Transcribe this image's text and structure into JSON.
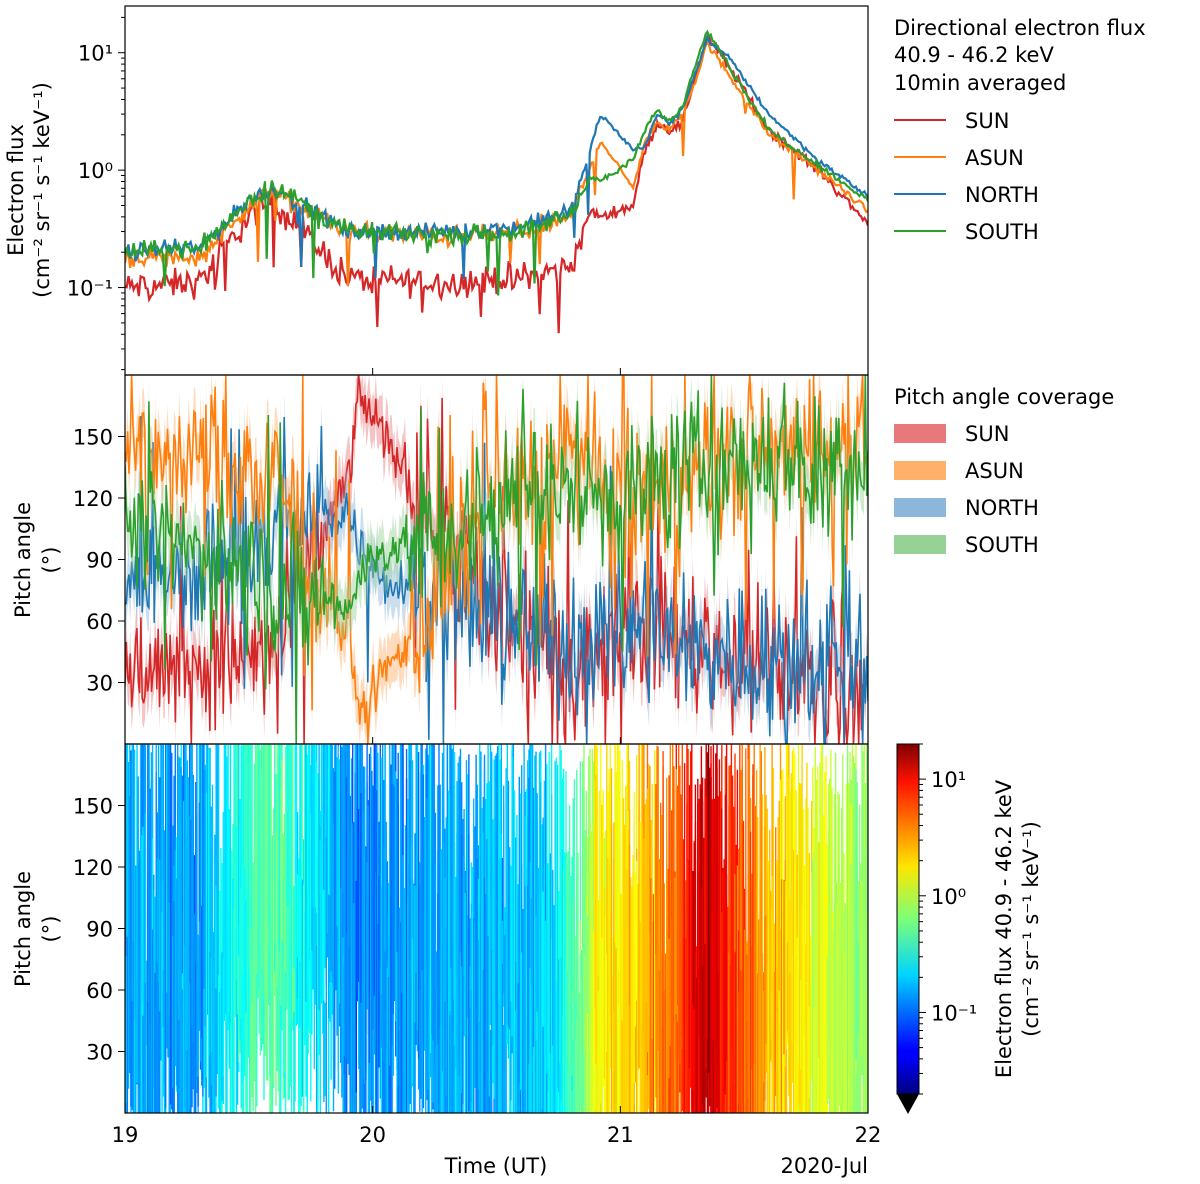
{
  "chart_data": [
    {
      "type": "line",
      "panel": "top",
      "ylabel_line1": "Electron flux",
      "ylabel_line2": "(cm⁻² sr⁻¹ s⁻¹ keV⁻¹)",
      "yscale": "log",
      "ylim": [
        0.018,
        25
      ],
      "xlim": [
        19,
        22
      ],
      "legend_title_lines": [
        "Directional electron flux",
        "40.9 - 46.2 keV",
        "10min averaged"
      ],
      "legend_position": "outside-right",
      "yticks": [
        {
          "value": 0.1,
          "label": "10⁻¹"
        },
        {
          "value": 1,
          "label": "10⁰"
        },
        {
          "value": 10,
          "label": "10¹"
        }
      ],
      "anchor_days": [
        19.0,
        19.3,
        19.5,
        19.6,
        19.9,
        20.3,
        20.6,
        20.8,
        20.88,
        20.92,
        21.05,
        21.1,
        21.15,
        21.2,
        21.25,
        21.3,
        21.35,
        21.45,
        21.6,
        21.8,
        22.0
      ],
      "series": [
        {
          "name": "SUN",
          "color": "#d62728",
          "noise": 0.9,
          "values": [
            0.1,
            0.11,
            0.4,
            0.55,
            0.12,
            0.11,
            0.12,
            0.15,
            0.45,
            0.4,
            0.5,
            1.5,
            2.5,
            2.2,
            2.5,
            6,
            14,
            7,
            2.2,
            1.0,
            0.35
          ]
        },
        {
          "name": "ASUN",
          "color": "#ff7f0e",
          "noise": 0.6,
          "values": [
            0.18,
            0.18,
            0.5,
            0.65,
            0.3,
            0.27,
            0.3,
            0.4,
            1.1,
            1.8,
            0.7,
            1.8,
            2.5,
            2.2,
            3.0,
            5.5,
            12,
            6,
            2.0,
            1.0,
            0.45
          ]
        },
        {
          "name": "NORTH",
          "color": "#1f77b4",
          "noise": 0.5,
          "values": [
            0.2,
            0.22,
            0.55,
            0.7,
            0.3,
            0.3,
            0.33,
            0.45,
            1.5,
            3.0,
            1.5,
            1.6,
            3.0,
            2.5,
            3.2,
            6.5,
            13,
            8.5,
            3.0,
            1.2,
            0.6
          ]
        },
        {
          "name": "SOUTH",
          "color": "#2ca02c",
          "noise": 0.55,
          "values": [
            0.2,
            0.22,
            0.55,
            0.75,
            0.3,
            0.28,
            0.3,
            0.42,
            0.9,
            0.8,
            1.2,
            2.2,
            3.2,
            2.6,
            3.5,
            7.5,
            16,
            7,
            2.2,
            1.1,
            0.55
          ]
        }
      ]
    },
    {
      "type": "line",
      "panel": "middle",
      "ylabel_line1": "Pitch angle",
      "ylabel_line2": "(°)",
      "ylim": [
        0,
        180
      ],
      "xlim": [
        19,
        22
      ],
      "yticks": [
        30,
        60,
        90,
        120,
        150
      ],
      "legend_title": "Pitch angle coverage",
      "legend_position": "outside-right",
      "anchor_days": [
        19.0,
        19.3,
        19.6,
        19.9,
        19.95,
        20.05,
        20.2,
        20.5,
        20.8,
        21.0,
        21.3,
        21.6,
        21.9,
        22.0
      ],
      "series": [
        {
          "name": "SUN",
          "color": "#d62728",
          "fill": "#e8797a",
          "values": [
            35,
            40,
            45,
            130,
            170,
            150,
            120,
            60,
            40,
            60,
            50,
            35,
            30,
            30
          ]
        },
        {
          "name": "ASUN",
          "color": "#ff7f0e",
          "fill": "#ffb06a",
          "values": [
            145,
            140,
            130,
            50,
            15,
            35,
            60,
            120,
            140,
            120,
            130,
            145,
            150,
            150
          ]
        },
        {
          "name": "NORTH",
          "color": "#1f77b4",
          "fill": "#8cb6da",
          "values": [
            75,
            85,
            100,
            115,
            95,
            80,
            80,
            60,
            50,
            60,
            45,
            40,
            40,
            40
          ]
        },
        {
          "name": "SOUTH",
          "color": "#2ca02c",
          "fill": "#96d196",
          "values": [
            105,
            95,
            80,
            65,
            85,
            95,
            100,
            115,
            125,
            120,
            135,
            140,
            140,
            140
          ]
        }
      ]
    },
    {
      "type": "heatmap",
      "panel": "bottom",
      "ylabel_line1": "Pitch angle",
      "ylabel_line2": "(°)",
      "ylim": [
        0,
        180
      ],
      "xlim": [
        19,
        22
      ],
      "yticks": [
        30,
        60,
        90,
        120,
        150
      ],
      "xticks": [
        19,
        20,
        21,
        22
      ],
      "xlabel": "Time (UT)",
      "date_label": "2020-Jul",
      "colormap": "jet",
      "colorbar": {
        "scale": "log",
        "range": [
          0.02,
          20
        ],
        "ticks": [
          {
            "value": 0.1,
            "label": "10⁻¹"
          },
          {
            "value": 1,
            "label": "10⁰"
          },
          {
            "value": 10,
            "label": "10¹"
          }
        ],
        "label_line1": "Electron flux 40.9 - 46.2 keV",
        "label_line2": "(cm⁻² sr⁻¹ s⁻¹ keV⁻¹)"
      },
      "flux_profile_days": [
        19.0,
        19.3,
        19.5,
        19.6,
        19.9,
        20.3,
        20.6,
        20.72,
        20.85,
        20.9,
        21.05,
        21.15,
        21.25,
        21.3,
        21.35,
        21.45,
        21.6,
        21.8,
        22.0
      ],
      "flux_profile_values": [
        0.15,
        0.15,
        0.4,
        0.5,
        0.12,
        0.15,
        0.18,
        0.2,
        0.6,
        1.5,
        2.0,
        3.0,
        5.0,
        9.0,
        14.0,
        6.0,
        2.5,
        1.3,
        0.7
      ]
    }
  ]
}
